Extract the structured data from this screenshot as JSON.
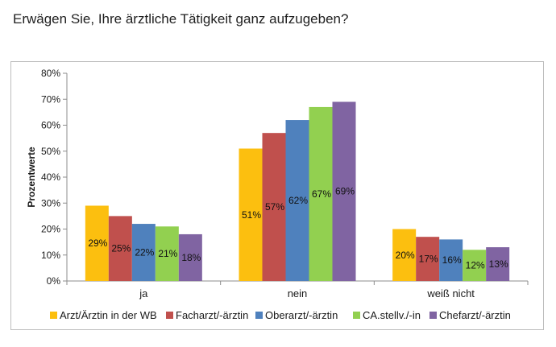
{
  "page": {
    "title": "Erwägen Sie, Ihre ärztliche Tätigkeit ganz aufzugeben?"
  },
  "chart_data": {
    "type": "bar",
    "title": "Erwägen Sie, Ihre ärztliche Tätigkeit ganz aufzugeben?",
    "xlabel": "",
    "ylabel": "Prozentwerte",
    "ylim": [
      0,
      80
    ],
    "y_ticks": [
      0,
      10,
      20,
      30,
      40,
      50,
      60,
      70,
      80
    ],
    "y_tick_suffix": "%",
    "grid": false,
    "legend_position": "bottom",
    "categories": [
      "ja",
      "nein",
      "weiß nicht"
    ],
    "series": [
      {
        "name": "Arzt/Ärztin in der WB",
        "color": "#fcbf0f",
        "values": [
          29,
          51,
          20
        ]
      },
      {
        "name": "Facharzt/-ärztin",
        "color": "#c0504d",
        "values": [
          25,
          57,
          17
        ]
      },
      {
        "name": "Oberarzt/-ärztin",
        "color": "#4f81bd",
        "values": [
          22,
          62,
          16
        ]
      },
      {
        "name": "CA.stellv./-in",
        "color": "#92d050",
        "values": [
          21,
          67,
          12
        ]
      },
      {
        "name": "Chefarzt/-ärztin",
        "color": "#8064a2",
        "values": [
          18,
          69,
          13
        ]
      }
    ],
    "data_labels": [
      [
        "29%",
        "51%",
        "20%"
      ],
      [
        "25%",
        "57%",
        "17%"
      ],
      [
        "22%",
        "62%",
        "16%"
      ],
      [
        "21%",
        "67%",
        "12%"
      ],
      [
        "18%",
        "69%",
        "13%"
      ]
    ]
  }
}
